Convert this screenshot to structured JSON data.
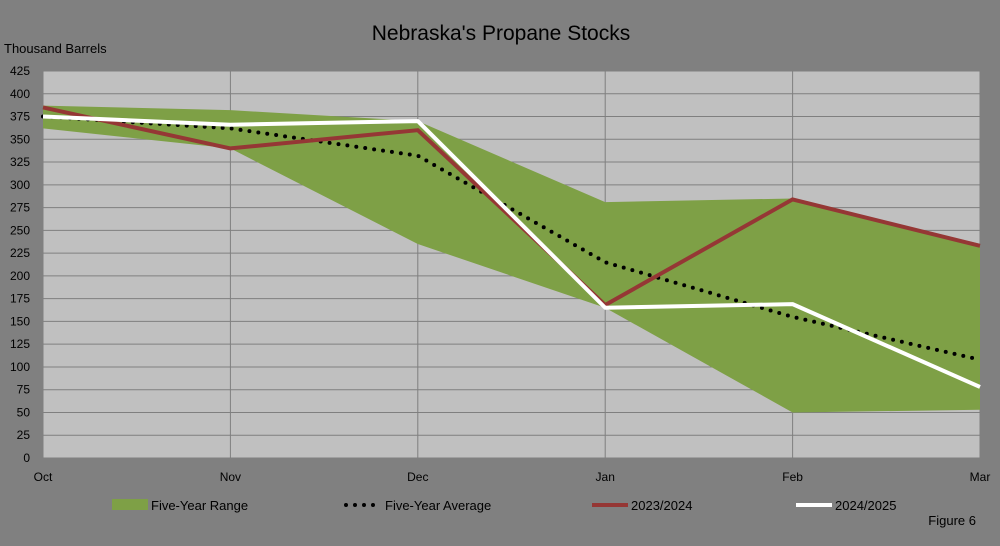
{
  "chart_data": {
    "type": "line",
    "title": "Nebraska's Propane Stocks",
    "ylabel": "Thousand Barrels",
    "xlabel": "",
    "categories": [
      "Oct",
      "Nov",
      "Dec",
      "Jan",
      "Feb",
      "Mar"
    ],
    "ylim": [
      0,
      425
    ],
    "yticks": [
      0,
      25,
      50,
      75,
      100,
      125,
      150,
      175,
      200,
      225,
      250,
      275,
      300,
      325,
      350,
      375,
      400,
      425
    ],
    "grid": true,
    "legend_position": "bottom",
    "range": {
      "name": "Five-Year Range",
      "color": "#7ea046",
      "low": [
        362,
        340,
        235,
        165,
        50,
        53
      ],
      "high": [
        387,
        382,
        370,
        281,
        285,
        235
      ]
    },
    "series": [
      {
        "name": "Five-Year Average",
        "style": "dotted",
        "color": "#000000",
        "values": [
          375,
          362,
          332,
          215,
          155,
          108
        ]
      },
      {
        "name": "2023/2024",
        "style": "solid",
        "color": "#953735",
        "values": [
          385,
          340,
          360,
          168,
          284,
          233
        ]
      },
      {
        "name": "2024/2025",
        "style": "solid",
        "color": "#ffffff",
        "values": [
          375,
          366,
          370,
          165,
          169,
          78
        ]
      }
    ]
  },
  "footer": {
    "figure_label": "Figure 6"
  },
  "colors": {
    "background": "#808080",
    "plot_area": "#c0c0c0",
    "grid": "#7f7f7f"
  }
}
